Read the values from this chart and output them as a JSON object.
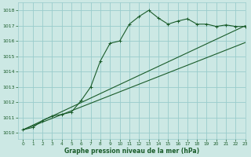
{
  "title": "Graphe pression niveau de la mer (hPa)",
  "bg_color": "#cce8e4",
  "grid_color": "#99cccc",
  "line_color": "#1a5c2a",
  "xlim": [
    -0.5,
    23
  ],
  "ylim": [
    1009.6,
    1018.5
  ],
  "yticks": [
    1010,
    1011,
    1012,
    1013,
    1014,
    1015,
    1016,
    1017,
    1018
  ],
  "xticks": [
    0,
    1,
    2,
    3,
    4,
    5,
    6,
    7,
    8,
    9,
    10,
    11,
    12,
    13,
    14,
    15,
    16,
    17,
    18,
    19,
    20,
    21,
    22,
    23
  ],
  "series1_x": [
    0,
    1,
    2,
    3,
    4,
    5,
    6,
    7,
    8,
    9,
    10,
    11,
    12,
    13,
    14,
    15,
    16,
    17,
    18,
    19,
    20,
    21,
    22,
    23
  ],
  "series1_y": [
    1010.2,
    1010.35,
    1010.8,
    1011.1,
    1011.2,
    1011.35,
    1012.1,
    1013.0,
    1014.7,
    1015.85,
    1016.0,
    1017.1,
    1017.6,
    1018.0,
    1017.5,
    1017.1,
    1017.3,
    1017.45,
    1017.1,
    1017.1,
    1016.95,
    1017.05,
    1016.95,
    1016.95
  ],
  "series2_x": [
    0,
    23
  ],
  "series2_y": [
    1010.2,
    1017.0
  ],
  "series3_x": [
    0,
    23
  ],
  "series3_y": [
    1010.2,
    1015.9
  ],
  "figwidth": 3.2,
  "figheight": 2.0,
  "dpi": 100
}
